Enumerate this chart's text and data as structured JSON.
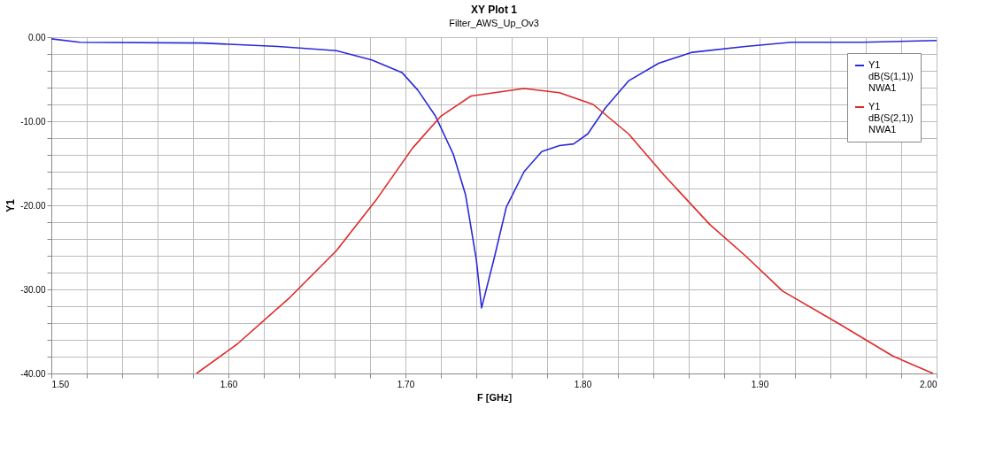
{
  "chart_data": {
    "type": "line",
    "title": "XY Plot 1",
    "subtitle": "Filter_AWS_Up_Ov3",
    "xlabel": "F [GHz]",
    "ylabel": "Y1",
    "xlim": [
      1.5,
      2.0
    ],
    "ylim": [
      -40,
      0
    ],
    "xticks": [
      {
        "value": 1.5,
        "label": "1.50"
      },
      {
        "value": 1.52,
        "label": null
      },
      {
        "value": 1.54,
        "label": null
      },
      {
        "value": 1.56,
        "label": null
      },
      {
        "value": 1.58,
        "label": null
      },
      {
        "value": 1.6,
        "label": "1.60"
      },
      {
        "value": 1.62,
        "label": null
      },
      {
        "value": 1.64,
        "label": null
      },
      {
        "value": 1.66,
        "label": null
      },
      {
        "value": 1.68,
        "label": null
      },
      {
        "value": 1.7,
        "label": "1.70"
      },
      {
        "value": 1.72,
        "label": null
      },
      {
        "value": 1.74,
        "label": null
      },
      {
        "value": 1.76,
        "label": null
      },
      {
        "value": 1.78,
        "label": null
      },
      {
        "value": 1.8,
        "label": "1.80"
      },
      {
        "value": 1.82,
        "label": null
      },
      {
        "value": 1.84,
        "label": null
      },
      {
        "value": 1.86,
        "label": null
      },
      {
        "value": 1.88,
        "label": null
      },
      {
        "value": 1.9,
        "label": "1.90"
      },
      {
        "value": 1.92,
        "label": null
      },
      {
        "value": 1.94,
        "label": null
      },
      {
        "value": 1.96,
        "label": null
      },
      {
        "value": 1.98,
        "label": null
      },
      {
        "value": 2.0,
        "label": "2.00"
      }
    ],
    "yticks": [
      {
        "value": 0,
        "label": "0.00"
      },
      {
        "value": -2,
        "label": null
      },
      {
        "value": -4,
        "label": null
      },
      {
        "value": -6,
        "label": null
      },
      {
        "value": -8,
        "label": null
      },
      {
        "value": -10,
        "label": "-10.00"
      },
      {
        "value": -12,
        "label": null
      },
      {
        "value": -14,
        "label": null
      },
      {
        "value": -16,
        "label": null
      },
      {
        "value": -18,
        "label": null
      },
      {
        "value": -20,
        "label": "-20.00"
      },
      {
        "value": -22,
        "label": null
      },
      {
        "value": -24,
        "label": null
      },
      {
        "value": -26,
        "label": null
      },
      {
        "value": -28,
        "label": null
      },
      {
        "value": -30,
        "label": "-30.00"
      },
      {
        "value": -32,
        "label": null
      },
      {
        "value": -34,
        "label": null
      },
      {
        "value": -36,
        "label": null
      },
      {
        "value": -38,
        "label": null
      },
      {
        "value": -40,
        "label": "-40.00"
      }
    ],
    "grid": true,
    "legend": "top right",
    "marker": "none",
    "line_style": "solid",
    "series": [
      {
        "name": "Y1 dB(S(1,1)) NWA1",
        "color": "#2a2ad8",
        "x": [
          1.5,
          1.516,
          1.585,
          1.628,
          1.661,
          1.681,
          1.698,
          1.707,
          1.717,
          1.727,
          1.734,
          1.74,
          1.743,
          1.75,
          1.757,
          1.767,
          1.777,
          1.787,
          1.795,
          1.803,
          1.813,
          1.826,
          1.843,
          1.862,
          1.892,
          1.918,
          1.958,
          2.0
        ],
        "values": [
          -0.2,
          -0.6,
          -0.7,
          -1.1,
          -1.6,
          -2.7,
          -4.2,
          -6.3,
          -9.4,
          -13.9,
          -18.8,
          -26.4,
          -32.2,
          -26.4,
          -20.2,
          -16.0,
          -13.6,
          -12.9,
          -12.7,
          -11.5,
          -8.4,
          -5.2,
          -3.1,
          -1.8,
          -1.1,
          -0.6,
          -0.6,
          -0.4
        ]
      },
      {
        "name": "Y1 dB(S(2,1)) NWA1",
        "color": "#e02828",
        "x": [
          1.582,
          1.605,
          1.635,
          1.661,
          1.684,
          1.704,
          1.72,
          1.737,
          1.767,
          1.787,
          1.806,
          1.826,
          1.846,
          1.872,
          1.892,
          1.913,
          1.945,
          1.975,
          1.998
        ],
        "values": [
          -40,
          -36.5,
          -30.9,
          -25.4,
          -19.2,
          -13.2,
          -9.4,
          -7.0,
          -6.1,
          -6.6,
          -8.0,
          -11.5,
          -16.4,
          -22.3,
          -26.0,
          -30.2,
          -34.1,
          -37.9,
          -40
        ]
      }
    ]
  }
}
